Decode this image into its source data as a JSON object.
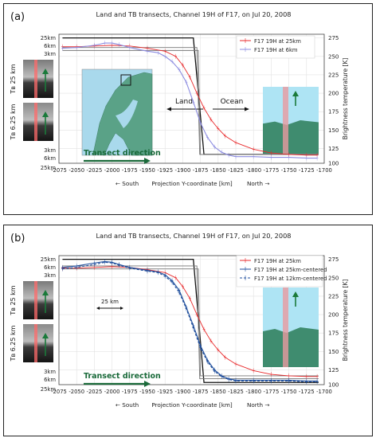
{
  "chart_data": [
    {
      "type": "line",
      "panel_label": "(a)",
      "title": "Land and TB transects, Channel 19H of F17, on Jul 20, 2008",
      "xlabel": "Projection Y-coordinate [km]",
      "xlabel_left": "← South",
      "xlabel_right": "North →",
      "ylabel": "Brightness temperature [K]",
      "xlim": [
        -2075,
        -1700
      ],
      "ylim": [
        105,
        280
      ],
      "x_ticks": [
        "-2075",
        "-2050",
        "-2025",
        "-2000",
        "-1975",
        "-1950",
        "-1925",
        "-1900",
        "-1875",
        "-1850",
        "-1825",
        "-1800",
        "-1775",
        "-1750",
        "-1725",
        "-1700"
      ],
      "y_ticks": [
        "275",
        "250",
        "225",
        "200",
        "175",
        "150",
        "125",
        "100"
      ],
      "left_axis_labels": [
        "25km",
        "6km",
        "3km"
      ],
      "left_axis_labels_bottom": [
        "3km",
        "6km",
        "25km"
      ],
      "side_labels": [
        "Tʙ 25 km",
        "Tʙ 6.25 km"
      ],
      "legend_position": "top-right",
      "annotations": {
        "land": "Land",
        "ocean": "Ocean",
        "transect": "Transect direction"
      },
      "footprints": [
        {
          "name": "25km",
          "x": [
            -2070,
            -1885,
            -1870,
            -1708
          ],
          "y": [
            275,
            275,
            117,
            117
          ]
        },
        {
          "name": "6km",
          "x": [
            -2070,
            -1880,
            -1876,
            -1708
          ],
          "y": [
            262,
            262,
            117,
            117
          ]
        },
        {
          "name": "3km",
          "x": [
            -2070,
            -1878,
            -1875,
            -1708
          ],
          "y": [
            258,
            258,
            117,
            117
          ]
        }
      ],
      "series": [
        {
          "name": "F17 19H at 25km",
          "color": "#e8292b",
          "x": [
            -2070,
            -2050,
            -2025,
            -2000,
            -1975,
            -1950,
            -1925,
            -1910,
            -1900,
            -1890,
            -1880,
            -1870,
            -1860,
            -1850,
            -1840,
            -1825,
            -1800,
            -1775,
            -1750,
            -1725,
            -1710
          ],
          "y": [
            263,
            263,
            264,
            265,
            264,
            261,
            257,
            250,
            238,
            222,
            200,
            180,
            164,
            152,
            142,
            133,
            124,
            119,
            117,
            116,
            116
          ]
        },
        {
          "name": "F17 19H at 6km",
          "color": "#8c8ce0",
          "x": [
            -2070,
            -2050,
            -2025,
            -2010,
            -2000,
            -1990,
            -1975,
            -1950,
            -1935,
            -1925,
            -1915,
            -1905,
            -1895,
            -1885,
            -1875,
            -1865,
            -1855,
            -1845,
            -1835,
            -1825,
            -1800,
            -1775,
            -1750,
            -1725,
            -1710
          ],
          "y": [
            261,
            262,
            265,
            268,
            268,
            266,
            262,
            257,
            255,
            250,
            243,
            232,
            215,
            188,
            160,
            140,
            127,
            120,
            116,
            114,
            114,
            113,
            113,
            112,
            112
          ]
        }
      ]
    },
    {
      "type": "line",
      "panel_label": "(b)",
      "title": "Land and TB transects, Channel 19H of F17, on Jul 20, 2008",
      "xlabel": "Projection Y-coordinate [km]",
      "xlabel_left": "← South",
      "xlabel_right": "North →",
      "ylabel": "Brightness temperature [K]",
      "xlim": [
        -2075,
        -1700
      ],
      "ylim": [
        105,
        280
      ],
      "x_ticks": [
        "-2075",
        "-2050",
        "-2025",
        "-2000",
        "-1975",
        "-1950",
        "-1925",
        "-1900",
        "-1875",
        "-1850",
        "-1825",
        "-1800",
        "-1775",
        "-1750",
        "-1725",
        "-1700"
      ],
      "y_ticks": [
        "275",
        "250",
        "225",
        "200",
        "175",
        "150",
        "125",
        "100"
      ],
      "left_axis_labels": [
        "25km",
        "6km",
        "3km"
      ],
      "left_axis_labels_bottom": [
        "3km",
        "6km",
        "25km"
      ],
      "side_labels": [
        "Tʙ 25 km",
        "Tʙ 6.25 km"
      ],
      "legend_position": "top-right",
      "annotations": {
        "scale": "25 km",
        "transect": "Transect direction"
      },
      "footprints": [
        {
          "name": "25km",
          "x": [
            -2070,
            -1885,
            -1870,
            -1708
          ],
          "y": [
            275,
            275,
            108,
            108
          ]
        },
        {
          "name": "6km",
          "x": [
            -2070,
            -1880,
            -1876,
            -1708
          ],
          "y": [
            266,
            266,
            113,
            113
          ]
        },
        {
          "name": "3km",
          "x": [
            -2070,
            -1878,
            -1875,
            -1708
          ],
          "y": [
            262,
            262,
            117,
            117
          ]
        }
      ],
      "series": [
        {
          "name": "F17 19H at 25km",
          "color": "#e8292b",
          "x": [
            -2070,
            -2050,
            -2025,
            -2000,
            -1975,
            -1950,
            -1925,
            -1910,
            -1900,
            -1890,
            -1880,
            -1870,
            -1860,
            -1850,
            -1840,
            -1825,
            -1800,
            -1775,
            -1750,
            -1725,
            -1710
          ],
          "y": [
            263,
            263,
            264,
            265,
            264,
            261,
            257,
            250,
            238,
            222,
            200,
            180,
            164,
            152,
            142,
            133,
            124,
            119,
            117,
            116,
            116
          ]
        },
        {
          "name": "F17 19H at 25km-centered",
          "color": "#1f4e9c",
          "x": [
            -2070,
            -2050,
            -2025,
            -2010,
            -2000,
            -1990,
            -1975,
            -1950,
            -1935,
            -1925,
            -1915,
            -1905,
            -1895,
            -1885,
            -1875,
            -1865,
            -1855,
            -1845,
            -1835,
            -1825,
            -1800,
            -1775,
            -1750,
            -1725,
            -1710
          ],
          "y": [
            264,
            266,
            270,
            272,
            271,
            268,
            264,
            260,
            258,
            254,
            246,
            233,
            210,
            185,
            158,
            138,
            125,
            117,
            113,
            111,
            111,
            111,
            111,
            110,
            110
          ]
        },
        {
          "name": "F17 19H at 12km-centered",
          "color": "#1f4e9c",
          "dashed": true,
          "x": [
            -2070,
            -2050,
            -2025,
            -2010,
            -2000,
            -1990,
            -1975,
            -1950,
            -1935,
            -1925,
            -1915,
            -1905,
            -1895,
            -1885,
            -1875,
            -1865,
            -1855,
            -1845,
            -1835,
            -1825,
            -1800,
            -1775,
            -1750,
            -1725,
            -1710
          ],
          "y": [
            262,
            264,
            268,
            271,
            270,
            267,
            263,
            259,
            257,
            252,
            244,
            230,
            208,
            182,
            155,
            136,
            123,
            116,
            112,
            110,
            110,
            110,
            110,
            109,
            109
          ]
        }
      ]
    }
  ]
}
